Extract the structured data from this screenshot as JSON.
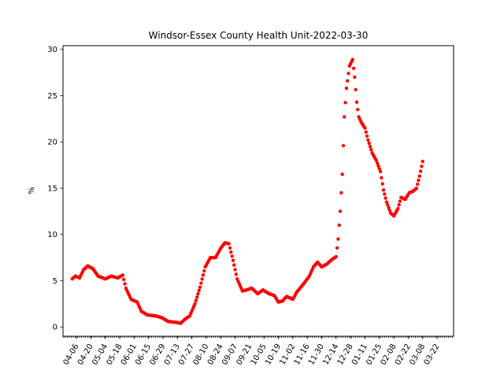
{
  "chart_data": {
    "type": "scatter",
    "title": "Windsor-Essex County Health Unit-2022-03-30",
    "xlabel": "",
    "ylabel": "%",
    "xlim": [
      "2021-03-24",
      "2022-04-07"
    ],
    "ylim": [
      -1.0,
      30.4
    ],
    "grid": false,
    "marker_color": "#ff0000",
    "x_tick_labels": [
      "04-06",
      "04-20",
      "05-04",
      "05-18",
      "06-01",
      "06-15",
      "06-29",
      "07-13",
      "07-27",
      "08-10",
      "08-24",
      "09-07",
      "09-21",
      "10-05",
      "10-19",
      "11-02",
      "11-16",
      "11-30",
      "12-14",
      "12-28",
      "01-11",
      "01-25",
      "02-08",
      "02-22",
      "03-08",
      "03-22"
    ],
    "x_tick_dates": [
      "2021-04-06",
      "2021-04-20",
      "2021-05-04",
      "2021-05-18",
      "2021-06-01",
      "2021-06-15",
      "2021-06-29",
      "2021-07-13",
      "2021-07-27",
      "2021-08-10",
      "2021-08-24",
      "2021-09-07",
      "2021-09-21",
      "2021-10-05",
      "2021-10-19",
      "2021-11-02",
      "2021-11-16",
      "2021-11-30",
      "2021-12-14",
      "2021-12-28",
      "2022-01-11",
      "2022-01-25",
      "2022-02-08",
      "2022-02-22",
      "2022-03-08",
      "2022-03-22"
    ],
    "y_ticks": [
      0,
      5,
      10,
      15,
      20,
      25,
      30
    ],
    "anchors": [
      [
        "2021-04-02",
        5.2
      ],
      [
        "2021-04-05",
        5.5
      ],
      [
        "2021-04-09",
        5.3
      ],
      [
        "2021-04-13",
        6.2
      ],
      [
        "2021-04-17",
        6.6
      ],
      [
        "2021-04-22",
        6.3
      ],
      [
        "2021-04-27",
        5.5
      ],
      [
        "2021-05-04",
        5.2
      ],
      [
        "2021-05-10",
        5.5
      ],
      [
        "2021-05-16",
        5.3
      ],
      [
        "2021-05-21",
        5.6
      ],
      [
        "2021-05-24",
        4.2
      ],
      [
        "2021-05-29",
        3.0
      ],
      [
        "2021-06-04",
        2.7
      ],
      [
        "2021-06-08",
        1.7
      ],
      [
        "2021-06-14",
        1.3
      ],
      [
        "2021-06-22",
        1.2
      ],
      [
        "2021-06-28",
        1.0
      ],
      [
        "2021-07-04",
        0.6
      ],
      [
        "2021-07-12",
        0.5
      ],
      [
        "2021-07-16",
        0.4
      ],
      [
        "2021-07-21",
        0.9
      ],
      [
        "2021-07-25",
        1.2
      ],
      [
        "2021-07-30",
        2.5
      ],
      [
        "2021-08-04",
        4.3
      ],
      [
        "2021-08-09",
        6.5
      ],
      [
        "2021-08-14",
        7.5
      ],
      [
        "2021-08-19",
        7.5
      ],
      [
        "2021-08-24",
        8.5
      ],
      [
        "2021-08-28",
        9.1
      ],
      [
        "2021-09-01",
        9.0
      ],
      [
        "2021-09-05",
        7.2
      ],
      [
        "2021-09-09",
        5.2
      ],
      [
        "2021-09-14",
        3.9
      ],
      [
        "2021-09-18",
        4.0
      ],
      [
        "2021-09-23",
        4.2
      ],
      [
        "2021-09-29",
        3.6
      ],
      [
        "2021-10-04",
        4.0
      ],
      [
        "2021-10-10",
        3.6
      ],
      [
        "2021-10-15",
        3.4
      ],
      [
        "2021-10-19",
        2.7
      ],
      [
        "2021-10-23",
        2.8
      ],
      [
        "2021-10-27",
        3.3
      ],
      [
        "2021-11-02",
        3.0
      ],
      [
        "2021-11-06",
        3.8
      ],
      [
        "2021-11-12",
        4.6
      ],
      [
        "2021-11-18",
        5.5
      ],
      [
        "2021-11-22",
        6.5
      ],
      [
        "2021-11-26",
        7.0
      ],
      [
        "2021-11-30",
        6.5
      ],
      [
        "2021-12-05",
        6.8
      ],
      [
        "2021-12-10",
        7.3
      ],
      [
        "2021-12-14",
        7.6
      ],
      [
        "2021-12-16",
        9.5
      ],
      [
        "2021-12-18",
        12.5
      ],
      [
        "2021-12-20",
        16.5
      ],
      [
        "2021-12-22",
        22.7
      ],
      [
        "2021-12-24",
        25.8
      ],
      [
        "2021-12-27",
        28.2
      ],
      [
        "2021-12-30",
        28.9
      ],
      [
        "2022-01-01",
        27.0
      ],
      [
        "2022-01-03",
        24.3
      ],
      [
        "2022-01-05",
        22.7
      ],
      [
        "2022-01-08",
        22.0
      ],
      [
        "2022-01-11",
        21.5
      ],
      [
        "2022-01-14",
        20.2
      ],
      [
        "2022-01-18",
        18.8
      ],
      [
        "2022-01-22",
        18.0
      ],
      [
        "2022-01-26",
        16.8
      ],
      [
        "2022-01-29",
        14.8
      ],
      [
        "2022-02-01",
        13.5
      ],
      [
        "2022-02-05",
        12.3
      ],
      [
        "2022-02-08",
        12.0
      ],
      [
        "2022-02-12",
        12.8
      ],
      [
        "2022-02-15",
        14.0
      ],
      [
        "2022-02-19",
        13.8
      ],
      [
        "2022-02-23",
        14.5
      ],
      [
        "2022-02-27",
        14.7
      ],
      [
        "2022-03-02",
        15.0
      ],
      [
        "2022-03-05",
        16.3
      ],
      [
        "2022-03-08",
        17.9
      ]
    ]
  }
}
